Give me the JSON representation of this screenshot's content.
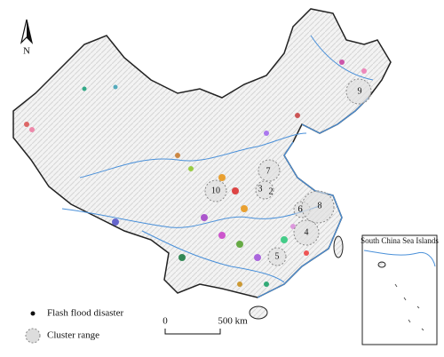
{
  "compass": {
    "label": "N"
  },
  "inset": {
    "title": "South China Sea Islands"
  },
  "legend": {
    "items": [
      "Flash flood disaster",
      "Cluster range"
    ]
  },
  "scale_bar": {
    "ticks": [
      "0",
      "500 km"
    ]
  },
  "clusters": [
    {
      "label": "2"
    },
    {
      "label": "3"
    },
    {
      "label": "4"
    },
    {
      "label": "5"
    },
    {
      "label": "6"
    },
    {
      "label": "7"
    },
    {
      "label": "8"
    },
    {
      "label": "9"
    },
    {
      "label": "10"
    }
  ]
}
